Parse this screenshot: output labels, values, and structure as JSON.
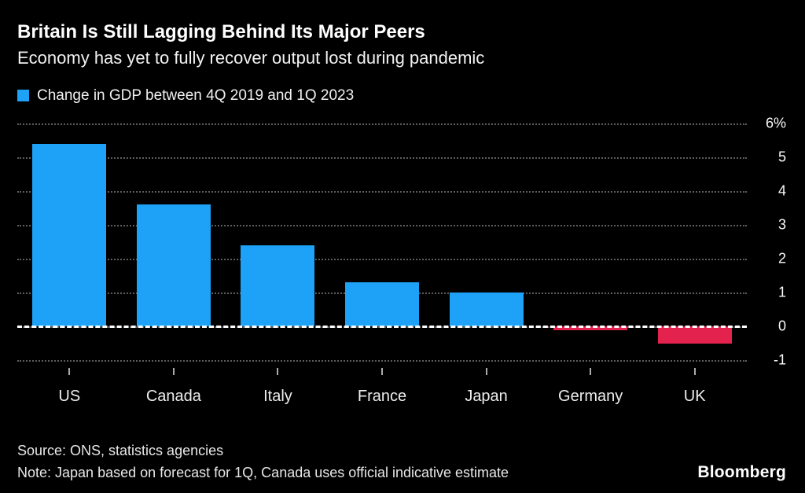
{
  "header": {
    "title": "Britain Is Still Lagging Behind Its Major Peers",
    "subtitle": "Economy has yet to fully recover output lost during pandemic"
  },
  "legend": {
    "label": "Change in GDP between 4Q 2019 and 1Q 2023"
  },
  "chart_data": {
    "type": "bar",
    "title": "Britain Is Still Lagging Behind Its Major Peers",
    "subtitle": "Economy has yet to fully recover output lost during pandemic",
    "series_label": "Change in GDP between 4Q 2019 and 1Q 2023",
    "categories": [
      "US",
      "Canada",
      "Italy",
      "France",
      "Japan",
      "Germany",
      "UK"
    ],
    "values": [
      5.4,
      3.6,
      2.4,
      1.3,
      1.0,
      -0.1,
      -0.5
    ],
    "xlabel": "",
    "ylabel": "",
    "ylim": [
      -1.05,
      6.2
    ],
    "yticks": {
      "values": [
        6,
        5,
        4,
        3,
        2,
        1,
        0,
        -1
      ],
      "labels": [
        "6%",
        "5",
        "4",
        "3",
        "2",
        "1",
        "0",
        "-1"
      ]
    },
    "positive_color": "#1da2f7",
    "negative_color": "#e4224e",
    "grid": "dotted horizontal",
    "zero_line": "dashed white",
    "legend_position": "top-left",
    "bar_width_fraction": 0.71
  },
  "footer": {
    "source": "Source: ONS, statistics agencies",
    "note": "Note: Japan based on forecast for 1Q, Canada uses official indicative estimate",
    "brand": "Bloomberg"
  }
}
